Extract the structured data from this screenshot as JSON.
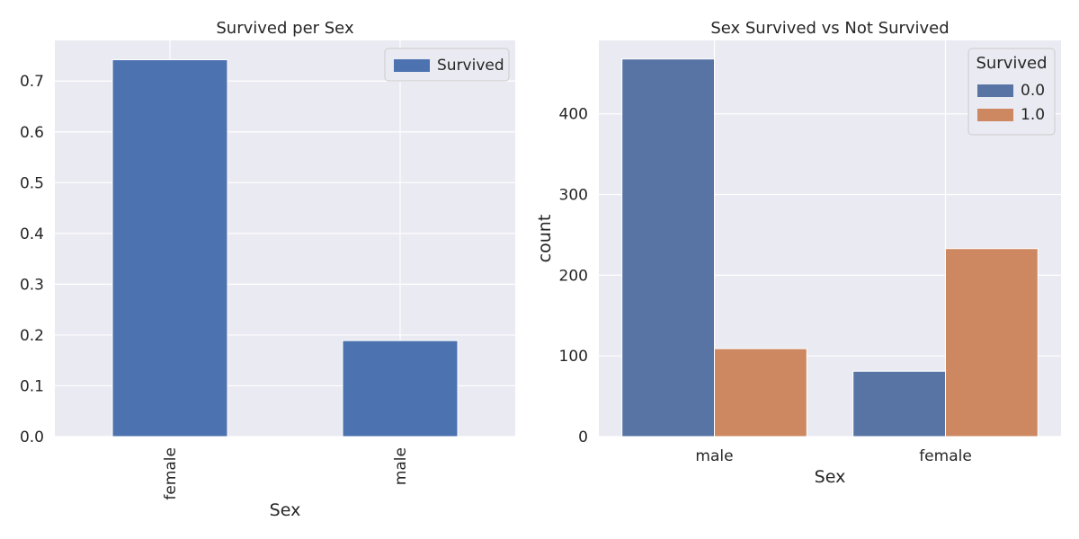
{
  "chart_data": [
    {
      "type": "bar",
      "title": "Survived per Sex",
      "xlabel": "Sex",
      "ylabel": "",
      "categories": [
        "female",
        "male"
      ],
      "series": [
        {
          "name": "Survived",
          "values": [
            0.742,
            0.189
          ]
        }
      ],
      "ylim": [
        0,
        0.78
      ],
      "yticks": [
        0.0,
        0.1,
        0.2,
        0.3,
        0.4,
        0.5,
        0.6,
        0.7
      ],
      "ytick_labels": [
        "0.0",
        "0.1",
        "0.2",
        "0.3",
        "0.4",
        "0.5",
        "0.6",
        "0.7"
      ],
      "grid": true,
      "legend_position": "top-right",
      "colors": {
        "Survived": "#4c72b0"
      },
      "xtick_rotation": "vertical"
    },
    {
      "type": "bar",
      "title": "Sex Survived vs Not Survived",
      "xlabel": "Sex",
      "ylabel": "count",
      "categories": [
        "male",
        "female"
      ],
      "legend_title": "Survived",
      "series": [
        {
          "name": "0.0",
          "values": [
            468,
            81
          ]
        },
        {
          "name": "1.0",
          "values": [
            109,
            233
          ]
        }
      ],
      "ylim": [
        0,
        491
      ],
      "yticks": [
        0,
        100,
        200,
        300,
        400
      ],
      "ytick_labels": [
        "0",
        "100",
        "200",
        "300",
        "400"
      ],
      "grid": true,
      "legend_position": "top-right",
      "colors": {
        "0.0": "#5874a5",
        "1.0": "#cd8862"
      }
    }
  ]
}
